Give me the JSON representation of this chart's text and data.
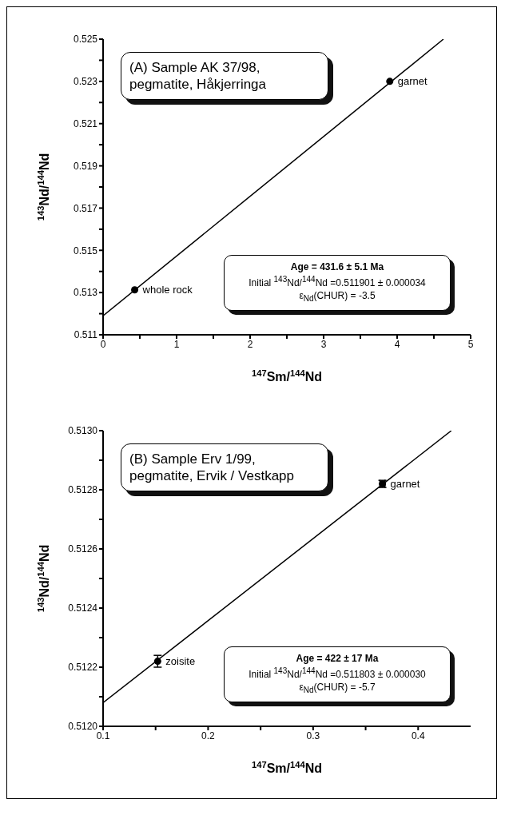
{
  "chart_data": [
    {
      "type": "scatter",
      "title": "(A) Sample AK 37/98, pegmatite, Håkjerringa",
      "xlabel": "$^{147}$Sm/$^{144}$Nd",
      "ylabel": "$^{143}$Nd/$^{144}$Nd",
      "xlim": [
        0,
        5
      ],
      "xticks": [
        0,
        {
          "value": 0.5,
          "label": null
        },
        1,
        {
          "value": 1.5,
          "label": null
        },
        2,
        {
          "value": 2.5,
          "label": null
        },
        3,
        {
          "value": 3.5,
          "label": null
        },
        4,
        {
          "value": 4.5,
          "label": null
        },
        5
      ],
      "ylim": [
        0.511,
        0.525
      ],
      "yticks": [
        0.511,
        {
          "value": 0.512,
          "label": null
        },
        0.513,
        {
          "value": 0.514,
          "label": null
        },
        0.515,
        {
          "value": 0.516,
          "label": null
        },
        0.517,
        {
          "value": 0.518,
          "label": null
        },
        0.519,
        {
          "value": 0.52,
          "label": null
        },
        0.521,
        {
          "value": 0.522,
          "label": null
        },
        0.523,
        {
          "value": 0.524,
          "label": null
        },
        0.525
      ],
      "series": [
        {
          "type": "scatter",
          "color": "#000000",
          "marker": "circle",
          "x": [
            0.43,
            3.9
          ],
          "values": [
            0.51313,
            0.523
          ]
        },
        {
          "type": "line",
          "color": "#000000",
          "x": [
            0,
            4.63
          ],
          "values": [
            0.5119,
            0.525
          ]
        }
      ],
      "annotations": [
        {
          "text": "whole rock",
          "x": 0.43,
          "y": 0.51313
        },
        {
          "text": "garnet",
          "x": 3.9,
          "y": 0.523
        },
        "Age = 431.6 ± 5.1 Ma",
        "Initial $^{143}$Nd/$^{144}$Nd =0.511901 ± 0.000034",
        "ε$_{Nd}$(CHUR) = -3.5"
      ]
    },
    {
      "type": "scatter",
      "title": "(B) Sample Erv 1/99, pegmatite, Ervik / Vestkapp",
      "xlabel": "$^{147}$Sm/$^{144}$Nd",
      "ylabel": "$^{143}$Nd/$^{144}$Nd",
      "xlim": [
        0.1,
        0.45
      ],
      "xticks": [
        0.1,
        {
          "value": 0.15,
          "label": null
        },
        0.2,
        {
          "value": 0.25,
          "label": null
        },
        0.3,
        {
          "value": 0.35,
          "label": null
        },
        0.4
      ],
      "ylim": [
        0.512,
        0.513
      ],
      "yticks": [
        {
          "value": 0.512,
          "label": "0.5120"
        },
        {
          "value": 0.5121,
          "label": null
        },
        {
          "value": 0.5122,
          "label": "0.5122"
        },
        {
          "value": 0.5123,
          "label": null
        },
        {
          "value": 0.5124,
          "label": "0.5124"
        },
        {
          "value": 0.5125,
          "label": null
        },
        {
          "value": 0.5126,
          "label": "0.5126"
        },
        {
          "value": 0.5127,
          "label": null
        },
        {
          "value": 0.5128,
          "label": "0.5128"
        },
        {
          "value": 0.5129,
          "label": null
        },
        {
          "value": 0.513,
          "label": "0.5130"
        }
      ],
      "series": [
        {
          "type": "scatter",
          "color": "#000000",
          "marker": "circle",
          "x": [
            0.152,
            0.366
          ],
          "values": [
            0.51222,
            0.51282
          ],
          "errors": [
            2e-05,
            1.2e-05
          ],
          "xerrors": [
            null,
            0.0024
          ]
        },
        {
          "type": "line",
          "color": "#000000",
          "x": [
            0.1,
            0.4316
          ],
          "values": [
            0.51208,
            0.513
          ]
        }
      ],
      "annotations": [
        {
          "text": "zoisite",
          "x": 0.152,
          "y": 0.51222
        },
        {
          "text": "garnet",
          "x": 0.366,
          "y": 0.51282
        },
        "Age = 422 ± 17 Ma",
        "Initial $^{143}$Nd/$^{144}$Nd =0.511803 ± 0.000030",
        "ε$_{Nd}$(CHUR) = -5.7"
      ]
    }
  ]
}
